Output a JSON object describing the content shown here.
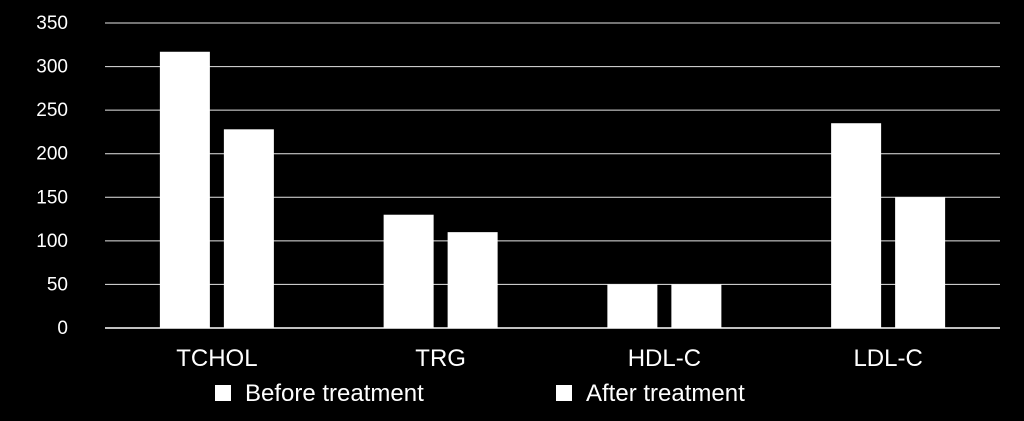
{
  "chart_data": {
    "type": "bar",
    "title": "",
    "xlabel": "",
    "ylabel": "",
    "categories": [
      "TCHOL",
      "TRG",
      "HDL-C",
      "LDL-C"
    ],
    "series": [
      {
        "name": "Before treatment",
        "values": [
          317,
          130,
          50,
          235
        ]
      },
      {
        "name": "After treatment",
        "values": [
          228,
          110,
          50,
          150
        ]
      }
    ],
    "ylim": [
      0,
      350
    ],
    "yticks": [
      0,
      50,
      100,
      150,
      200,
      250,
      300,
      350
    ],
    "grid": true,
    "legend_position": "bottom",
    "colors": {
      "background": "#000000",
      "bars": "#ffffff",
      "text": "#ffffff",
      "grid": "#ffffff"
    }
  }
}
